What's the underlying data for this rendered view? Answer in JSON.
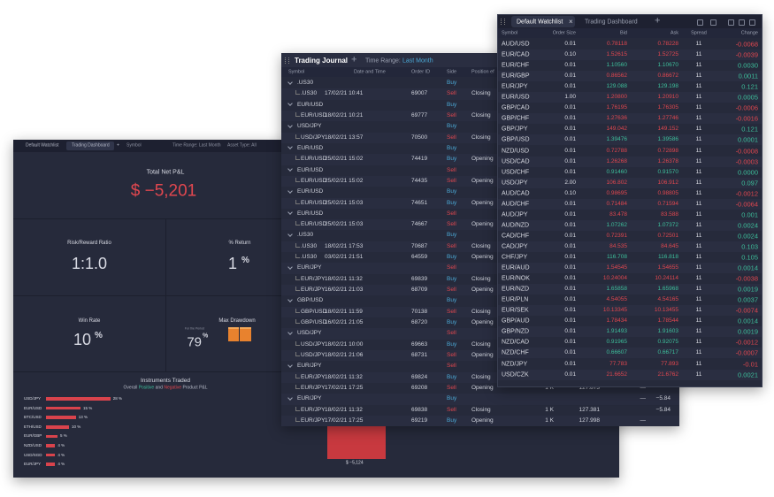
{
  "dashboard": {
    "tabs": [
      "Default Watchlist",
      "Trading Dashboard",
      "+"
    ],
    "filters": [
      "Symbol",
      "Time Range: Last Month",
      "Asset Type: All"
    ],
    "net_pnl": {
      "label": "Total Net P&L",
      "value": "$ −5,201"
    },
    "risk_reward": {
      "label": "Risk/Reward Ratio",
      "value": "1:1.0"
    },
    "return": {
      "label": "% Return",
      "value": "1",
      "unit": "%"
    },
    "win_rate": {
      "label": "Win Rate",
      "value": "10",
      "unit": "%"
    },
    "drawdown": {
      "label": "Max Drawdown",
      "period": "For the Period",
      "value": "79",
      "unit": "%"
    },
    "instruments": {
      "title": "Instruments Traded",
      "subtitle": [
        "Overall ",
        "Positive",
        " and ",
        "Negative",
        " Product P&L"
      ],
      "items": [
        {
          "name": "USD/JPY",
          "value": 28,
          "label": "28 %"
        },
        {
          "name": "EUR/USD",
          "value": 15,
          "label": "15 %"
        },
        {
          "name": "BTC/USD",
          "value": 13,
          "label": "13 %"
        },
        {
          "name": "ETH/USD",
          "value": 10,
          "label": "10 %"
        },
        {
          "name": "EUR/GBP",
          "value": 5,
          "label": "5 %"
        },
        {
          "name": "NZD/USD",
          "value": 4,
          "label": "4 %"
        },
        {
          "name": "USD/SGD",
          "value": 4,
          "label": "4 %"
        },
        {
          "name": "EUR/JPY",
          "value": 4,
          "label": "4 %"
        }
      ]
    },
    "pnl_bar": {
      "label": "$ −5,124"
    }
  },
  "journal": {
    "title": "Trading Journal",
    "add": "+",
    "range_label": "Time Range:",
    "range_value": "Last Month",
    "columns": [
      "Symbol",
      "Date and Time",
      "Order ID",
      "Side",
      "Position ef"
    ],
    "rows": [
      {
        "group": ".US30",
        "side": "Buy"
      },
      {
        "symbol": ".US30",
        "date": "17/02/21 10:41",
        "id": "69007",
        "side": "Sell",
        "position": "Closing"
      },
      {
        "group": "EUR/USD",
        "side": "Buy"
      },
      {
        "symbol": "EUR/USD",
        "date": "18/02/21 10:21",
        "id": "69777",
        "side": "Sell",
        "position": "Closing"
      },
      {
        "group": "USD/JPY",
        "side": "Buy"
      },
      {
        "symbol": "USD/JPY",
        "date": "18/02/21 13:57",
        "id": "70500",
        "side": "Sell",
        "position": "Closing"
      },
      {
        "group": "EUR/USD",
        "side": "Buy"
      },
      {
        "symbol": "EUR/USD",
        "date": "25/02/21 15:02",
        "id": "74419",
        "side": "Buy",
        "position": "Opening"
      },
      {
        "group": "EUR/USD",
        "side": "Sell"
      },
      {
        "symbol": "EUR/USD",
        "date": "25/02/21 15:02",
        "id": "74435",
        "side": "Sell",
        "position": "Opening"
      },
      {
        "group": "EUR/USD",
        "side": "Buy"
      },
      {
        "symbol": "EUR/USD",
        "date": "25/02/21 15:03",
        "id": "74651",
        "side": "Buy",
        "position": "Opening"
      },
      {
        "group": "EUR/USD",
        "side": "Sell"
      },
      {
        "symbol": "EUR/USD",
        "date": "25/02/21 15:03",
        "id": "74667",
        "side": "Sell",
        "position": "Opening"
      },
      {
        "group": ".US30",
        "side": "Buy"
      },
      {
        "symbol": ".US30",
        "date": "18/02/21 17:53",
        "id": "70687",
        "side": "Sell",
        "position": "Closing"
      },
      {
        "symbol": ".US30",
        "date": "03/02/21 21:51",
        "id": "64559",
        "side": "Buy",
        "position": "Opening"
      },
      {
        "group": "EUR/JPY",
        "side": "Sell"
      },
      {
        "symbol": "EUR/JPY",
        "date": "18/02/21 11:32",
        "id": "69839",
        "side": "Buy",
        "position": "Closing"
      },
      {
        "symbol": "EUR/JPY",
        "date": "16/02/21 21:03",
        "id": "68709",
        "side": "Sell",
        "position": "Opening"
      },
      {
        "group": "GBP/USD",
        "side": "Buy"
      },
      {
        "symbol": "GBP/USD",
        "date": "18/02/21 11:59",
        "id": "70138",
        "side": "Sell",
        "position": "Closing"
      },
      {
        "symbol": "GBP/USD",
        "date": "16/02/21 21:05",
        "id": "68720",
        "side": "Buy",
        "position": "Opening"
      },
      {
        "group": "USD/JPY",
        "side": "Sell"
      },
      {
        "symbol": "USD/JPY",
        "date": "18/02/21 10:00",
        "id": "69663",
        "side": "Buy",
        "position": "Closing"
      },
      {
        "symbol": "USD/JPY",
        "date": "18/02/21 21:06",
        "id": "68731",
        "side": "Sell",
        "position": "Opening"
      },
      {
        "group": "EUR/JPY",
        "side": "Sell"
      },
      {
        "symbol": "EUR/JPY",
        "date": "18/02/21 11:32",
        "id": "69824",
        "side": "Buy",
        "position": "Closing"
      },
      {
        "symbol": "EUR/JPY",
        "date": "17/02/21 17:25",
        "id": "69208",
        "side": "Sell",
        "position": "Opening",
        "extra": [
          "1 K",
          "127.873",
          "—"
        ]
      },
      {
        "group": "EUR/JPY",
        "side": "Buy",
        "extra": [
          "",
          "",
          "—",
          "−5.84"
        ]
      },
      {
        "symbol": "EUR/JPY",
        "date": "18/02/21 11:32",
        "id": "69838",
        "side": "Sell",
        "position": "Closing",
        "extra": [
          "1 K",
          "127.381",
          "",
          "−5.84"
        ]
      },
      {
        "symbol": "EUR/JPY",
        "date": "17/02/21 17:25",
        "id": "69219",
        "side": "Buy",
        "position": "Opening",
        "extra": [
          "1 K",
          "127.998",
          "—"
        ]
      }
    ]
  },
  "watchlist": {
    "tabs": [
      "Default Watchlist",
      "Trading Dashboard"
    ],
    "close": "×",
    "add": "+",
    "columns": [
      "Symbol",
      "Order Size",
      "Bid",
      "Ask",
      "Spread",
      "Change"
    ],
    "rows": [
      [
        "AUD/USD",
        "0.01",
        "0.78118",
        "0.78228",
        "11",
        "-0.0068",
        "down"
      ],
      [
        "EUR/CAD",
        "0.10",
        "1.52615",
        "1.52725",
        "11",
        "-0.0039",
        "down"
      ],
      [
        "EUR/CHF",
        "0.01",
        "1.10560",
        "1.10670",
        "11",
        "0.0030",
        "up"
      ],
      [
        "EUR/GBP",
        "0.01",
        "0.86562",
        "0.86672",
        "11",
        "0.0011",
        "down"
      ],
      [
        "EUR/JPY",
        "0.01",
        "129.088",
        "129.198",
        "11",
        "0.121",
        "up"
      ],
      [
        "EUR/USD",
        "1.00",
        "1.20800",
        "1.20910",
        "11",
        "0.0005",
        "down"
      ],
      [
        "GBP/CAD",
        "0.01",
        "1.76195",
        "1.76305",
        "11",
        "-0.0006",
        "down"
      ],
      [
        "GBP/CHF",
        "0.01",
        "1.27636",
        "1.27746",
        "11",
        "-0.0016",
        "down"
      ],
      [
        "GBP/JPY",
        "0.01",
        "149.042",
        "149.152",
        "11",
        "0.121",
        "down"
      ],
      [
        "GBP/USD",
        "0.01",
        "1.39476",
        "1.39586",
        "11",
        "0.0001",
        "up"
      ],
      [
        "NZD/USD",
        "0.01",
        "0.72788",
        "0.72898",
        "11",
        "-0.0008",
        "down"
      ],
      [
        "USD/CAD",
        "0.01",
        "1.26268",
        "1.26378",
        "11",
        "-0.0003",
        "down"
      ],
      [
        "USD/CHF",
        "0.01",
        "0.91460",
        "0.91570",
        "11",
        "0.0000",
        "up"
      ],
      [
        "USD/JPY",
        "2.00",
        "106.802",
        "106.912",
        "11",
        "0.097",
        "down"
      ],
      [
        "AUD/CAD",
        "0.10",
        "0.98695",
        "0.98805",
        "11",
        "-0.0012",
        "down"
      ],
      [
        "AUD/CHF",
        "0.01",
        "0.71484",
        "0.71594",
        "11",
        "-0.0064",
        "down"
      ],
      [
        "AUD/JPY",
        "0.01",
        "83.478",
        "83.588",
        "11",
        "0.001",
        "down"
      ],
      [
        "AUD/NZD",
        "0.01",
        "1.07262",
        "1.07372",
        "11",
        "0.0024",
        "up"
      ],
      [
        "CAD/CHF",
        "0.01",
        "0.72391",
        "0.72501",
        "11",
        "0.0024",
        "down"
      ],
      [
        "CAD/JPY",
        "0.01",
        "84.535",
        "84.645",
        "11",
        "0.103",
        "down"
      ],
      [
        "CHF/JPY",
        "0.01",
        "116.708",
        "116.818",
        "11",
        "0.105",
        "up"
      ],
      [
        "EUR/AUD",
        "0.01",
        "1.54545",
        "1.54655",
        "11",
        "0.0014",
        "down"
      ],
      [
        "EUR/NOK",
        "0.01",
        "10.24004",
        "10.24114",
        "11",
        "-0.0038",
        "down"
      ],
      [
        "EUR/NZD",
        "0.01",
        "1.65858",
        "1.65968",
        "11",
        "0.0019",
        "up"
      ],
      [
        "EUR/PLN",
        "0.01",
        "4.54055",
        "4.54165",
        "11",
        "0.0037",
        "down"
      ],
      [
        "EUR/SEK",
        "0.01",
        "10.13345",
        "10.13455",
        "11",
        "-0.0074",
        "down"
      ],
      [
        "GBP/AUD",
        "0.01",
        "1.78434",
        "1.78544",
        "11",
        "0.0014",
        "down"
      ],
      [
        "GBP/NZD",
        "0.01",
        "1.91493",
        "1.91603",
        "11",
        "0.0019",
        "up"
      ],
      [
        "NZD/CAD",
        "0.01",
        "0.91965",
        "0.92075",
        "11",
        "-0.0012",
        "up"
      ],
      [
        "NZD/CHF",
        "0.01",
        "0.66607",
        "0.66717",
        "11",
        "-0.0007",
        "up"
      ],
      [
        "NZD/JPY",
        "0.01",
        "77.783",
        "77.893",
        "11",
        "-0.01",
        "down"
      ],
      [
        "USD/CZK",
        "0.01",
        "21.6652",
        "21.6762",
        "11",
        "0.0021",
        "down"
      ]
    ]
  }
}
